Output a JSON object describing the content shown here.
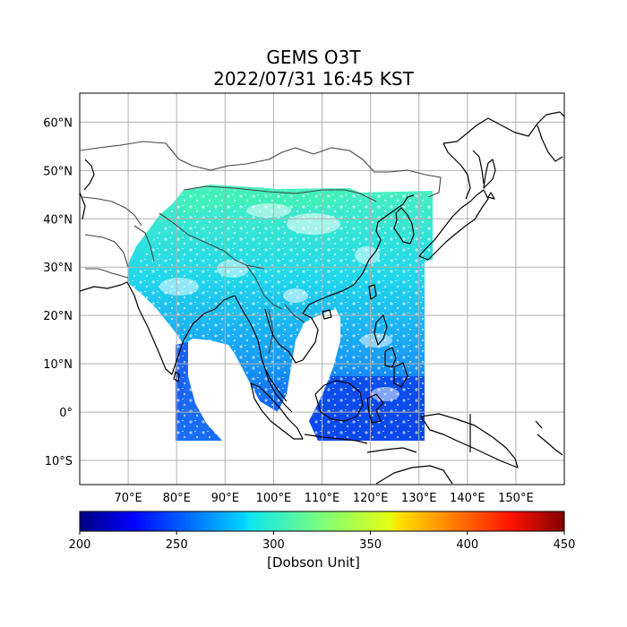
{
  "title": {
    "line1": "GEMS O3T",
    "line2": "2022/07/31 16:45 KST"
  },
  "map": {
    "lon_range": [
      60,
      160
    ],
    "lat_range": [
      -15,
      66
    ],
    "lon_ticks": [
      {
        "value": 70,
        "label": "70°E"
      },
      {
        "value": 80,
        "label": "80°E"
      },
      {
        "value": 90,
        "label": "90°E"
      },
      {
        "value": 100,
        "label": "100°E"
      },
      {
        "value": 110,
        "label": "110°E"
      },
      {
        "value": 120,
        "label": "120°E"
      },
      {
        "value": 130,
        "label": "130°E"
      },
      {
        "value": 140,
        "label": "140°E"
      },
      {
        "value": 150,
        "label": "150°E"
      }
    ],
    "lat_ticks": [
      {
        "value": 60,
        "label": "60°N"
      },
      {
        "value": 50,
        "label": "50°N"
      },
      {
        "value": 40,
        "label": "40°N"
      },
      {
        "value": 30,
        "label": "30°N"
      },
      {
        "value": 20,
        "label": "20°N"
      },
      {
        "value": 10,
        "label": "10°N"
      },
      {
        "value": 0,
        "label": "0°"
      },
      {
        "value": -10,
        "label": "10°S"
      }
    ],
    "gridlines": true
  },
  "colorbar": {
    "min": 200,
    "max": 450,
    "ticks": [
      200,
      250,
      300,
      350,
      400,
      450
    ],
    "label": "[Dobson Unit]",
    "colormap": "jet"
  },
  "colors": {
    "grid": "#b0b0b0",
    "coast": "#000000",
    "border": "#444444"
  }
}
